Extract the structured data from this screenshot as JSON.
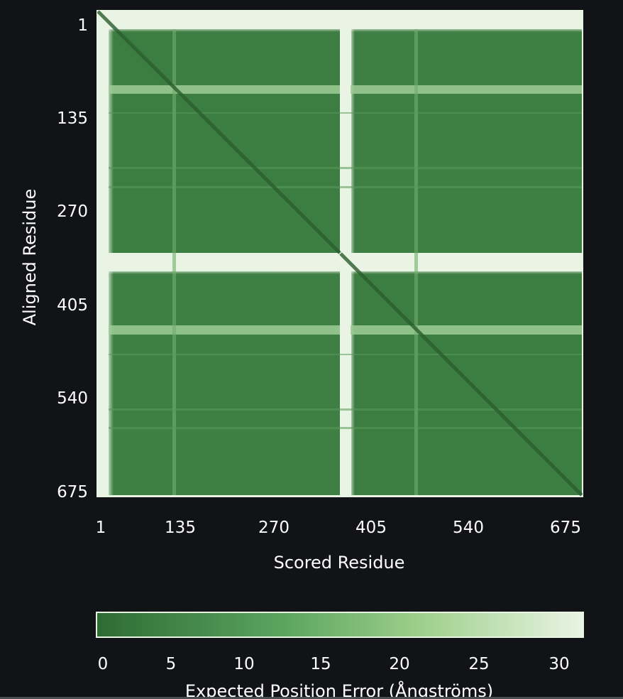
{
  "chart_data": {
    "type": "heatmap",
    "xlabel": "Scored Residue",
    "ylabel": "Aligned Residue",
    "x_ticks": [
      "1",
      "135",
      "270",
      "405",
      "540",
      "675"
    ],
    "y_ticks": [
      "1",
      "135",
      "270",
      "405",
      "540",
      "675"
    ],
    "residue_range": [
      1,
      675
    ],
    "chain_boundary_residue": 338,
    "colorbar": {
      "label": "Expected Position Error (Ångströms)",
      "ticks": [
        "0",
        "5",
        "10",
        "15",
        "20",
        "25",
        "30"
      ],
      "range": [
        0,
        31.75
      ],
      "colors": [
        "#2e6b33",
        "#5aa45f",
        "#9ccf8a",
        "#eaf4e4"
      ]
    },
    "regions": [
      {
        "name": "chain A N-terminus",
        "residues": [
          1,
          15
        ],
        "pae": 30
      },
      {
        "name": "chain A / chain A",
        "pae": 3
      },
      {
        "name": "chain A / chain B",
        "pae": 4
      },
      {
        "name": "chain B / chain A",
        "pae": 4
      },
      {
        "name": "chain B / chain B",
        "pae": 3
      },
      {
        "name": "flexible loop band",
        "residues": [
          105,
          112
        ],
        "pae": 18
      }
    ]
  }
}
